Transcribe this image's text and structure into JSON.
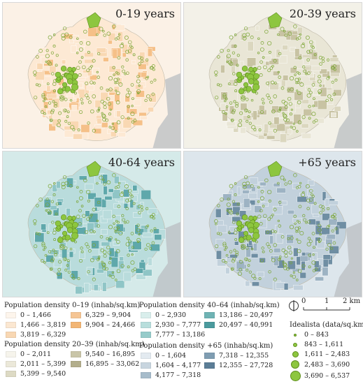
{
  "panels": [
    {
      "title": "0-19 years",
      "base": "#fbf1e6",
      "fills": [
        "#fde9d4",
        "#f9d8b3",
        "#f5c088"
      ]
    },
    {
      "title": "20-39 years",
      "base": "#f3f1e8",
      "fills": [
        "#e9e6d6",
        "#dbd7bf",
        "#c8c3a3"
      ]
    },
    {
      "title": "40-64 years",
      "base": "#d5eae9",
      "fills": [
        "#b9dcdc",
        "#8fc5c6",
        "#5fa8ab"
      ]
    },
    {
      "title": "+65 years",
      "base": "#dde6ec",
      "fills": [
        "#c2d1dc",
        "#9db3c3",
        "#6f8ea3"
      ]
    }
  ],
  "legend_0_19": {
    "title": "Population density 0–19 (inhab/sq.km)",
    "items": [
      {
        "label": "0 – 1,466",
        "color": "#fdf5ec"
      },
      {
        "label": "1,466 – 3,819",
        "color": "#fbe7d1"
      },
      {
        "label": "3,819 – 6,329",
        "color": "#f8d7b3"
      },
      {
        "label": "6,329 – 9,904",
        "color": "#f5c594"
      },
      {
        "label": "9,904 – 24,466",
        "color": "#f2b574"
      }
    ]
  },
  "legend_20_39": {
    "title": "Population density 20–39 (inhab/sq.km)",
    "items": [
      {
        "label": "0 – 2,011",
        "color": "#f6f4ec"
      },
      {
        "label": "2,011 – 5,399",
        "color": "#ebe8d9"
      },
      {
        "label": "5,399 – 9,540",
        "color": "#dddac4"
      },
      {
        "label": "9,540 – 16,895",
        "color": "#c9c5a8"
      },
      {
        "label": "16,895 – 33,062",
        "color": "#b3ae8c"
      }
    ]
  },
  "legend_40_64": {
    "title": "Population density 40–64 (inhab/sq.km)",
    "items": [
      {
        "label": "0 – 2,930",
        "color": "#d9eeec"
      },
      {
        "label": "2,930 – 7,777",
        "color": "#b8dedc"
      },
      {
        "label": "7,777 – 13,186",
        "color": "#96cbca"
      },
      {
        "label": "13,186 – 20,497",
        "color": "#6fb3b4"
      },
      {
        "label": "20,497 – 40,991",
        "color": "#4a9a9d"
      }
    ]
  },
  "legend_65": {
    "title": "Population density +65 (inhab/sq.km)",
    "items": [
      {
        "label": "0 – 1,604",
        "color": "#e3eaf0"
      },
      {
        "label": "1,604 – 4,177",
        "color": "#c8d5df"
      },
      {
        "label": "4,177 – 7,318",
        "color": "#a7bccb"
      },
      {
        "label": "7,318 – 12,355",
        "color": "#7f9db2"
      },
      {
        "label": "12,355 – 27,728",
        "color": "#5b7d96"
      }
    ]
  },
  "idealista": {
    "title": "Idealista (data/sq.km)",
    "items": [
      "0 – 843",
      "843 – 1,611",
      "1,611 – 2,483",
      "2,483 – 3,690",
      "3,690 – 6,537"
    ]
  },
  "scale": {
    "ticks": [
      "0",
      "1",
      "2 km"
    ]
  }
}
